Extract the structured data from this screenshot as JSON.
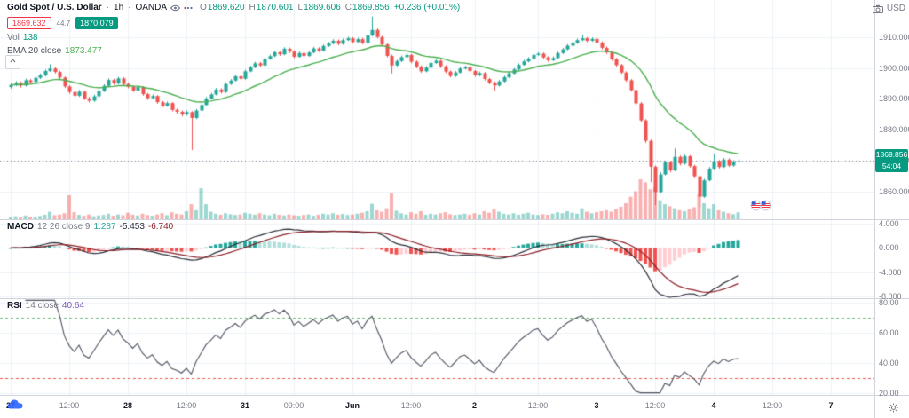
{
  "header": {
    "symbol": "Gold Spot / U.S. Dollar",
    "separator": "·",
    "interval": "1h",
    "exchange": "OANDA",
    "ohlc": {
      "o_label": "O",
      "o": "1869.620",
      "h_label": "H",
      "h": "1870.601",
      "l_label": "L",
      "l": "1869.606",
      "c_label": "C",
      "c": "1869.856",
      "change": "+0.236 (+0.01%)"
    },
    "sell_price": "1869.632",
    "spread": "44.7",
    "buy_price": "1870.079",
    "volume_label": "Vol",
    "volume_value": "138",
    "ema_label": "EMA 20 close",
    "ema_value": "1873.477"
  },
  "macd_panel": {
    "name": "MACD",
    "params": "12 26 close 9",
    "hist_value": "1.287",
    "macd_value": "-5.453",
    "signal_value": "-6.740"
  },
  "rsi_panel": {
    "name": "RSI",
    "params": "14 close",
    "value": "40.64"
  },
  "price_axis": {
    "currency": "USD",
    "labels": [
      "1910.000",
      "1900.000",
      "1890.000",
      "1880.000",
      "1870.000",
      "1860.000"
    ],
    "badge": {
      "price": "1869.856",
      "countdown": "54:04"
    }
  },
  "macd_axis": {
    "labels": [
      "4.000",
      "0.000",
      "-4.000",
      "-8.000"
    ]
  },
  "rsi_axis": {
    "labels": [
      "80.00",
      "60.00",
      "40.00",
      "20.00"
    ]
  },
  "colors": {
    "up": "#26a69a",
    "down": "#ef5350",
    "volume_up": "rgba(38,166,154,0.45)",
    "volume_down": "rgba(239,83,80,0.45)",
    "ema": "#4caf50",
    "grid": "#edf0f6",
    "divider": "#d1d4dc",
    "axis_text": "#787b86",
    "text": "#131722",
    "badge_bg": "#089981",
    "price_line": "#787b86",
    "macd_line": "#2a2e39",
    "macd_signal": "#8c1f28",
    "hist_pos_strong": "#26a69a",
    "hist_pos_weak": "#b2dfdb",
    "hist_neg_strong": "#ef5350",
    "hist_neg_weak": "#ffcdd2",
    "rsi_line": "#4e5260",
    "rsi_upper_band": "#66bb6a",
    "rsi_lower_band": "#ef5350",
    "sell": "#f23645",
    "buy": "#089981"
  },
  "chart_data": {
    "type": "candlestick",
    "title": "Gold Spot / U.S. Dollar, 1h, OANDA",
    "ylabel": "USD",
    "price_range_visible": [
      1851,
      1922
    ],
    "total_slots": 172,
    "x_axis": [
      {
        "label": "27",
        "slot": 0,
        "major": true
      },
      {
        "label": "12:00",
        "slot": 12,
        "major": false
      },
      {
        "label": "28",
        "slot": 24,
        "major": true
      },
      {
        "label": "12:00",
        "slot": 36,
        "major": false
      },
      {
        "label": "31",
        "slot": 48,
        "major": true
      },
      {
        "label": "09:00",
        "slot": 58,
        "major": false
      },
      {
        "label": "Jun",
        "slot": 70,
        "major": true
      },
      {
        "label": "12:00",
        "slot": 82,
        "major": false
      },
      {
        "label": "2",
        "slot": 95,
        "major": true
      },
      {
        "label": "12:00",
        "slot": 108,
        "major": false
      },
      {
        "label": "3",
        "slot": 120,
        "major": true
      },
      {
        "label": "12:00",
        "slot": 132,
        "major": false
      },
      {
        "label": "4",
        "slot": 144,
        "major": true
      },
      {
        "label": "12:00",
        "slot": 156,
        "major": false
      },
      {
        "label": "7",
        "slot": 168,
        "major": true
      }
    ],
    "overlays": [
      {
        "type": "ema",
        "period": 20,
        "last": 1873.477
      }
    ],
    "panels": [
      {
        "type": "macd",
        "params": "12 26 close 9",
        "visible_range": [
          4.6,
          -8.3
        ],
        "last": {
          "hist": 1.287,
          "macd": -5.453,
          "signal": -6.74
        }
      },
      {
        "type": "rsi",
        "params": "14 close",
        "visible_range": [
          82.3,
          18.8
        ],
        "bands": [
          70,
          30
        ],
        "last": 40.64
      }
    ],
    "candles": [
      [
        1893.8,
        1895.0,
        1893.3,
        1894.5
      ],
      [
        1894.5,
        1895.7,
        1894.1,
        1895.2
      ],
      [
        1895.2,
        1895.6,
        1893.6,
        1894.3
      ],
      [
        1894.3,
        1896.5,
        1894.0,
        1896.0
      ],
      [
        1896.0,
        1896.4,
        1894.8,
        1895.4
      ],
      [
        1895.4,
        1897.3,
        1895.1,
        1896.8
      ],
      [
        1896.8,
        1898.2,
        1896.4,
        1897.6
      ],
      [
        1897.6,
        1899.5,
        1897.2,
        1899.0
      ],
      [
        1899.0,
        1901.2,
        1898.7,
        1899.8
      ],
      [
        1899.8,
        1900.3,
        1898.2,
        1898.7
      ],
      [
        1898.7,
        1899.1,
        1896.3,
        1896.9
      ],
      [
        1896.9,
        1897.2,
        1893.5,
        1894.0
      ],
      [
        1894.0,
        1894.4,
        1891.6,
        1892.2
      ],
      [
        1892.2,
        1892.7,
        1890.4,
        1891.0
      ],
      [
        1891.0,
        1892.9,
        1890.6,
        1892.3
      ],
      [
        1892.3,
        1892.6,
        1889.6,
        1890.1
      ],
      [
        1890.1,
        1890.7,
        1888.8,
        1889.4
      ],
      [
        1889.4,
        1891.3,
        1889.0,
        1890.8
      ],
      [
        1890.8,
        1893.0,
        1890.5,
        1892.5
      ],
      [
        1892.5,
        1894.7,
        1892.2,
        1894.2
      ],
      [
        1894.2,
        1896.6,
        1893.9,
        1896.1
      ],
      [
        1896.1,
        1896.5,
        1894.5,
        1895.0
      ],
      [
        1895.0,
        1897.1,
        1894.7,
        1896.6
      ],
      [
        1896.6,
        1897.0,
        1894.3,
        1894.8
      ],
      [
        1894.8,
        1895.3,
        1893.4,
        1893.9
      ],
      [
        1893.9,
        1894.3,
        1892.2,
        1892.7
      ],
      [
        1892.7,
        1894.3,
        1892.4,
        1893.8
      ],
      [
        1893.8,
        1894.1,
        1891.0,
        1891.5
      ],
      [
        1891.5,
        1891.9,
        1889.7,
        1890.2
      ],
      [
        1890.2,
        1891.4,
        1889.9,
        1890.9
      ],
      [
        1890.9,
        1891.2,
        1888.4,
        1888.9
      ],
      [
        1888.9,
        1889.3,
        1887.3,
        1887.8
      ],
      [
        1887.8,
        1889.1,
        1887.4,
        1888.6
      ],
      [
        1888.6,
        1888.9,
        1885.9,
        1886.4
      ],
      [
        1886.4,
        1886.8,
        1885.2,
        1885.8
      ],
      [
        1885.8,
        1886.2,
        1884.3,
        1884.9
      ],
      [
        1884.9,
        1886.2,
        1884.5,
        1885.7
      ],
      [
        1885.7,
        1886.0,
        1873.4,
        1883.8
      ],
      [
        1883.8,
        1886.7,
        1883.4,
        1886.2
      ],
      [
        1886.2,
        1888.5,
        1885.9,
        1888.0
      ],
      [
        1888.0,
        1890.6,
        1887.7,
        1890.1
      ],
      [
        1890.1,
        1891.9,
        1889.8,
        1891.4
      ],
      [
        1891.4,
        1893.5,
        1891.1,
        1893.0
      ],
      [
        1893.0,
        1893.4,
        1891.7,
        1892.2
      ],
      [
        1892.2,
        1895.3,
        1891.9,
        1894.8
      ],
      [
        1894.8,
        1896.4,
        1894.5,
        1895.9
      ],
      [
        1895.9,
        1897.8,
        1895.6,
        1897.3
      ],
      [
        1897.3,
        1897.7,
        1896.0,
        1896.5
      ],
      [
        1896.5,
        1899.4,
        1896.2,
        1898.9
      ],
      [
        1898.9,
        1900.7,
        1898.6,
        1900.2
      ],
      [
        1900.2,
        1902.0,
        1899.9,
        1901.5
      ],
      [
        1901.5,
        1901.9,
        1900.3,
        1900.8
      ],
      [
        1900.8,
        1903.4,
        1900.5,
        1902.9
      ],
      [
        1902.9,
        1904.3,
        1902.6,
        1903.8
      ],
      [
        1903.8,
        1905.6,
        1903.5,
        1905.1
      ],
      [
        1905.1,
        1905.5,
        1903.9,
        1904.4
      ],
      [
        1904.4,
        1906.7,
        1904.1,
        1906.2
      ],
      [
        1906.2,
        1906.6,
        1904.8,
        1905.3
      ],
      [
        1905.3,
        1905.7,
        1903.1,
        1903.6
      ],
      [
        1903.6,
        1905.3,
        1903.3,
        1904.8
      ],
      [
        1904.8,
        1905.2,
        1903.4,
        1903.9
      ],
      [
        1903.9,
        1905.5,
        1903.6,
        1905.0
      ],
      [
        1905.0,
        1906.8,
        1904.7,
        1906.3
      ],
      [
        1906.3,
        1906.7,
        1905.1,
        1905.6
      ],
      [
        1905.6,
        1907.6,
        1905.3,
        1907.1
      ],
      [
        1907.1,
        1908.4,
        1906.8,
        1907.9
      ],
      [
        1907.9,
        1909.3,
        1907.6,
        1908.8
      ],
      [
        1908.8,
        1909.2,
        1907.3,
        1907.8
      ],
      [
        1907.8,
        1909.5,
        1907.5,
        1909.0
      ],
      [
        1909.0,
        1910.1,
        1908.7,
        1909.6
      ],
      [
        1909.6,
        1910.0,
        1907.9,
        1908.4
      ],
      [
        1908.4,
        1909.8,
        1908.1,
        1909.3
      ],
      [
        1909.3,
        1909.7,
        1907.6,
        1908.1
      ],
      [
        1908.1,
        1911.0,
        1907.8,
        1910.5
      ],
      [
        1910.5,
        1916.6,
        1910.2,
        1912.3
      ],
      [
        1912.3,
        1912.8,
        1909.5,
        1910.0
      ],
      [
        1910.0,
        1910.4,
        1907.1,
        1907.6
      ],
      [
        1907.6,
        1908.0,
        1903.4,
        1903.9
      ],
      [
        1903.9,
        1904.3,
        1898.2,
        1900.8
      ],
      [
        1900.8,
        1902.7,
        1900.4,
        1902.2
      ],
      [
        1902.2,
        1904.0,
        1901.9,
        1903.5
      ],
      [
        1903.5,
        1904.7,
        1903.2,
        1904.2
      ],
      [
        1904.2,
        1904.6,
        1901.5,
        1902.0
      ],
      [
        1902.0,
        1902.4,
        1899.9,
        1900.4
      ],
      [
        1900.4,
        1900.8,
        1898.4,
        1898.9
      ],
      [
        1898.9,
        1900.6,
        1898.6,
        1900.1
      ],
      [
        1900.1,
        1902.1,
        1899.8,
        1901.6
      ],
      [
        1901.6,
        1902.8,
        1901.3,
        1902.3
      ],
      [
        1902.3,
        1902.7,
        1900.0,
        1900.5
      ],
      [
        1900.5,
        1900.9,
        1898.3,
        1898.8
      ],
      [
        1898.8,
        1899.2,
        1896.9,
        1897.4
      ],
      [
        1897.4,
        1899.0,
        1897.1,
        1898.5
      ],
      [
        1898.5,
        1900.3,
        1898.2,
        1899.8
      ],
      [
        1899.8,
        1900.7,
        1899.5,
        1900.2
      ],
      [
        1900.2,
        1900.6,
        1898.5,
        1899.0
      ],
      [
        1899.0,
        1899.4,
        1897.1,
        1897.6
      ],
      [
        1897.6,
        1898.8,
        1897.3,
        1898.3
      ],
      [
        1898.3,
        1898.7,
        1895.9,
        1896.4
      ],
      [
        1896.4,
        1896.8,
        1894.7,
        1895.2
      ],
      [
        1895.2,
        1895.6,
        1892.6,
        1894.3
      ],
      [
        1894.3,
        1896.1,
        1894.0,
        1895.6
      ],
      [
        1895.6,
        1897.5,
        1895.3,
        1897.0
      ],
      [
        1897.0,
        1898.7,
        1896.7,
        1898.2
      ],
      [
        1898.2,
        1900.0,
        1897.9,
        1899.5
      ],
      [
        1899.5,
        1901.5,
        1899.2,
        1901.0
      ],
      [
        1901.0,
        1902.6,
        1900.7,
        1902.1
      ],
      [
        1902.1,
        1903.5,
        1901.8,
        1903.0
      ],
      [
        1903.0,
        1904.7,
        1902.7,
        1904.2
      ],
      [
        1904.2,
        1905.1,
        1903.9,
        1904.6
      ],
      [
        1904.6,
        1905.0,
        1902.9,
        1903.4
      ],
      [
        1903.4,
        1903.8,
        1902.0,
        1902.5
      ],
      [
        1902.5,
        1903.7,
        1902.2,
        1903.2
      ],
      [
        1903.2,
        1905.3,
        1902.9,
        1904.8
      ],
      [
        1904.8,
        1906.5,
        1904.5,
        1906.0
      ],
      [
        1906.0,
        1907.7,
        1905.7,
        1907.2
      ],
      [
        1907.2,
        1908.6,
        1906.9,
        1908.1
      ],
      [
        1908.1,
        1909.5,
        1907.8,
        1909.0
      ],
      [
        1909.0,
        1910.8,
        1908.7,
        1909.6
      ],
      [
        1909.6,
        1910.0,
        1908.3,
        1908.8
      ],
      [
        1908.8,
        1909.9,
        1908.5,
        1909.4
      ],
      [
        1909.4,
        1909.8,
        1907.7,
        1908.2
      ],
      [
        1908.2,
        1908.6,
        1906.0,
        1906.5
      ],
      [
        1906.5,
        1906.9,
        1904.5,
        1905.0
      ],
      [
        1905.0,
        1905.4,
        1902.3,
        1902.8
      ],
      [
        1902.8,
        1903.2,
        1900.4,
        1900.9
      ],
      [
        1900.9,
        1901.3,
        1898.0,
        1898.5
      ],
      [
        1898.5,
        1898.9,
        1895.5,
        1896.0
      ],
      [
        1896.0,
        1896.4,
        1892.3,
        1892.8
      ],
      [
        1892.8,
        1893.2,
        1887.9,
        1888.5
      ],
      [
        1888.5,
        1888.9,
        1882.4,
        1883.0
      ],
      [
        1883.0,
        1883.4,
        1875.7,
        1876.4
      ],
      [
        1876.4,
        1876.8,
        1863.0,
        1868.0
      ],
      [
        1868.0,
        1868.4,
        1855.6,
        1859.8
      ],
      [
        1859.8,
        1866.2,
        1859.4,
        1865.5
      ],
      [
        1865.5,
        1870.0,
        1865.2,
        1869.4
      ],
      [
        1869.4,
        1869.8,
        1866.2,
        1866.8
      ],
      [
        1866.8,
        1873.9,
        1866.5,
        1871.2
      ],
      [
        1871.2,
        1871.6,
        1868.4,
        1869.0
      ],
      [
        1869.0,
        1872.0,
        1868.7,
        1871.4
      ],
      [
        1871.4,
        1871.8,
        1867.7,
        1868.2
      ],
      [
        1868.2,
        1868.6,
        1864.3,
        1864.9
      ],
      [
        1864.9,
        1865.3,
        1854.9,
        1858.3
      ],
      [
        1858.3,
        1864.1,
        1857.9,
        1863.6
      ],
      [
        1863.6,
        1867.9,
        1863.3,
        1867.4
      ],
      [
        1867.4,
        1872.3,
        1867.1,
        1869.8
      ],
      [
        1869.8,
        1870.2,
        1867.4,
        1867.9
      ],
      [
        1867.9,
        1870.8,
        1867.6,
        1870.3
      ],
      [
        1870.3,
        1870.7,
        1867.9,
        1868.4
      ],
      [
        1868.4,
        1870.1,
        1868.0,
        1869.6
      ],
      [
        1869.62,
        1870.601,
        1869.606,
        1869.856
      ]
    ],
    "volume": [
      45,
      60,
      38,
      75,
      52,
      48,
      66,
      90,
      150,
      80,
      95,
      120,
      480,
      140,
      88,
      70,
      95,
      60,
      75,
      85,
      110,
      70,
      95,
      80,
      130,
      90,
      75,
      110,
      85,
      70,
      95,
      120,
      80,
      140,
      110,
      95,
      160,
      300,
      180,
      620,
      300,
      150,
      110,
      90,
      120,
      100,
      85,
      95,
      130,
      110,
      90,
      120,
      95,
      80,
      110,
      90,
      75,
      95,
      80,
      70,
      85,
      95,
      70,
      90,
      110,
      95,
      120,
      90,
      105,
      85,
      95,
      110,
      130,
      160,
      310,
      180,
      150,
      220,
      520,
      170,
      120,
      95,
      140,
      110,
      160,
      90,
      110,
      95,
      120,
      140,
      100,
      85,
      95,
      110,
      90,
      120,
      95,
      160,
      130,
      200,
      150,
      110,
      95,
      120,
      90,
      110,
      130,
      95,
      85,
      100,
      90,
      110,
      140,
      120,
      160,
      130,
      110,
      220,
      150,
      120,
      140,
      160,
      180,
      150,
      200,
      250,
      320,
      450,
      560,
      800,
      740,
      600,
      640,
      380,
      300,
      260,
      220,
      180,
      160,
      200,
      240,
      500,
      320,
      220,
      300,
      180,
      150,
      120,
      100,
      138
    ]
  }
}
